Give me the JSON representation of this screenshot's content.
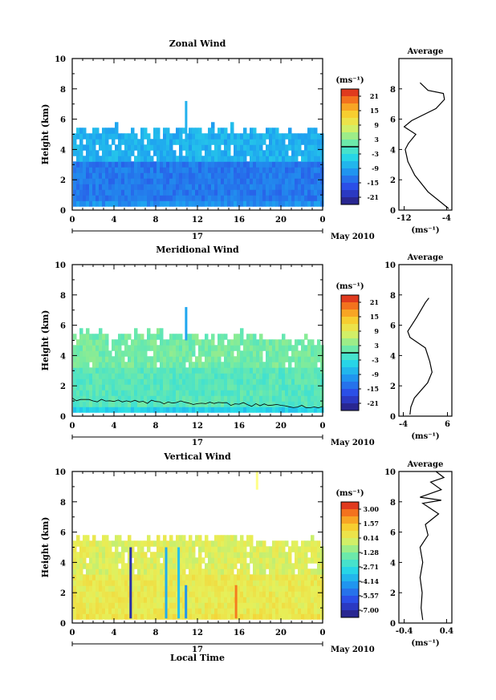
{
  "chart_data": [
    {
      "type": "heatmap",
      "title": "Zonal Wind",
      "ylabel": "Height (km)",
      "xticks": [
        "0",
        "4",
        "8",
        "12",
        "16",
        "20",
        "0"
      ],
      "yticks": [
        "0",
        "2",
        "4",
        "6",
        "8",
        "10"
      ],
      "date_label": "17",
      "month_label": "May 2010",
      "xlim": [
        0,
        24
      ],
      "ylim": [
        0,
        10
      ],
      "colorbar": {
        "unit": "(ms⁻¹)",
        "ticks": [
          "21",
          "15",
          "9",
          "3",
          "-3",
          "-9",
          "-15",
          "-21"
        ],
        "range": [
          -24,
          24
        ]
      },
      "field": {
        "top_km": 5.2,
        "base_value": -13,
        "mid_value": -8,
        "surface_value": -11
      },
      "average": {
        "title": "Average",
        "xlabel": "(ms⁻¹)",
        "xticks": [
          "-12",
          "-4"
        ],
        "xlim": [
          -13,
          -3
        ],
        "yticks": [
          "0",
          "2",
          "4",
          "6",
          "8"
        ],
        "profile": [
          [
            -3.6,
            0.1
          ],
          [
            -5.0,
            0.5
          ],
          [
            -7.5,
            1.2
          ],
          [
            -10.0,
            2.3
          ],
          [
            -11.3,
            3.2
          ],
          [
            -11.8,
            4.0
          ],
          [
            -11.2,
            4.4
          ],
          [
            -9.8,
            5.0
          ],
          [
            -12.0,
            5.5
          ],
          [
            -10.6,
            5.9
          ],
          [
            -6.0,
            6.7
          ],
          [
            -4.4,
            7.3
          ],
          [
            -4.6,
            7.7
          ],
          [
            -7.5,
            7.9
          ],
          [
            -9.0,
            8.4
          ]
        ]
      }
    },
    {
      "type": "heatmap",
      "title": "Meridional Wind",
      "ylabel": "Height (km)",
      "xticks": [
        "0",
        "4",
        "8",
        "12",
        "16",
        "20",
        "0"
      ],
      "yticks": [
        "0",
        "2",
        "4",
        "6",
        "8",
        "10"
      ],
      "date_label": "17",
      "month_label": "May 2010",
      "xlim": [
        0,
        24
      ],
      "ylim": [
        0,
        10
      ],
      "colorbar": {
        "unit": "(ms⁻¹)",
        "ticks": [
          "21",
          "15",
          "9",
          "3",
          "-3",
          "-9",
          "-15",
          "-21"
        ],
        "range": [
          -24,
          24
        ]
      },
      "field": {
        "top_km": 5.2,
        "base_value": 0,
        "mid_value": 2,
        "surface_value": -5
      },
      "average": {
        "title": "Average",
        "xlabel": "(ms⁻¹)",
        "xticks": [
          "-4",
          "6"
        ],
        "xlim": [
          -5,
          7
        ],
        "yticks": [
          "0",
          "2",
          "4",
          "6",
          "8",
          "10"
        ],
        "profile": [
          [
            -2.5,
            0.1
          ],
          [
            -2.3,
            0.6
          ],
          [
            -1.5,
            1.2
          ],
          [
            1.5,
            2.2
          ],
          [
            2.5,
            2.9
          ],
          [
            2.0,
            3.6
          ],
          [
            1.0,
            4.5
          ],
          [
            -2.5,
            5.2
          ],
          [
            -3.0,
            5.6
          ],
          [
            -1.0,
            6.5
          ],
          [
            1.0,
            7.5
          ],
          [
            1.8,
            7.8
          ]
        ]
      }
    },
    {
      "type": "heatmap",
      "title": "Vertical Wind",
      "ylabel": "Height (km)",
      "xlabel": "Local Time",
      "xticks": [
        "0",
        "4",
        "8",
        "12",
        "16",
        "20",
        "0"
      ],
      "yticks": [
        "0",
        "2",
        "4",
        "6",
        "8",
        "10"
      ],
      "date_label": "17",
      "month_label": "May 2010",
      "xlim": [
        0,
        24
      ],
      "ylim": [
        0,
        10
      ],
      "colorbar": {
        "unit": "(ms⁻¹)",
        "ticks": [
          "3.00",
          "1.57",
          "0.14",
          "-1.28",
          "-2.71",
          "-4.14",
          "-5.57",
          "-7.00"
        ],
        "range": [
          -7.7,
          3.7
        ]
      },
      "field": {
        "top_km": 5.4,
        "base_value": 0.3,
        "mid_value": 0.0,
        "surface_value": 0.5
      },
      "average": {
        "title": "Average",
        "xlabel": "(ms⁻¹)",
        "xticks": [
          "-0.4",
          "0.4"
        ],
        "xlim": [
          -0.5,
          0.5
        ],
        "yticks": [
          "0",
          "2",
          "4",
          "6",
          "8",
          "10"
        ],
        "profile": [
          [
            -0.05,
            0.2
          ],
          [
            -0.08,
            1.0
          ],
          [
            -0.06,
            2.0
          ],
          [
            -0.1,
            3.0
          ],
          [
            -0.05,
            4.0
          ],
          [
            -0.1,
            5.0
          ],
          [
            0.05,
            5.8
          ],
          [
            0.0,
            6.5
          ],
          [
            0.25,
            7.2
          ],
          [
            -0.05,
            7.9
          ],
          [
            0.3,
            8.1
          ],
          [
            -0.1,
            8.3
          ],
          [
            0.3,
            8.8
          ],
          [
            0.1,
            9.3
          ],
          [
            0.35,
            9.6
          ],
          [
            0.2,
            10.0
          ]
        ]
      }
    }
  ]
}
